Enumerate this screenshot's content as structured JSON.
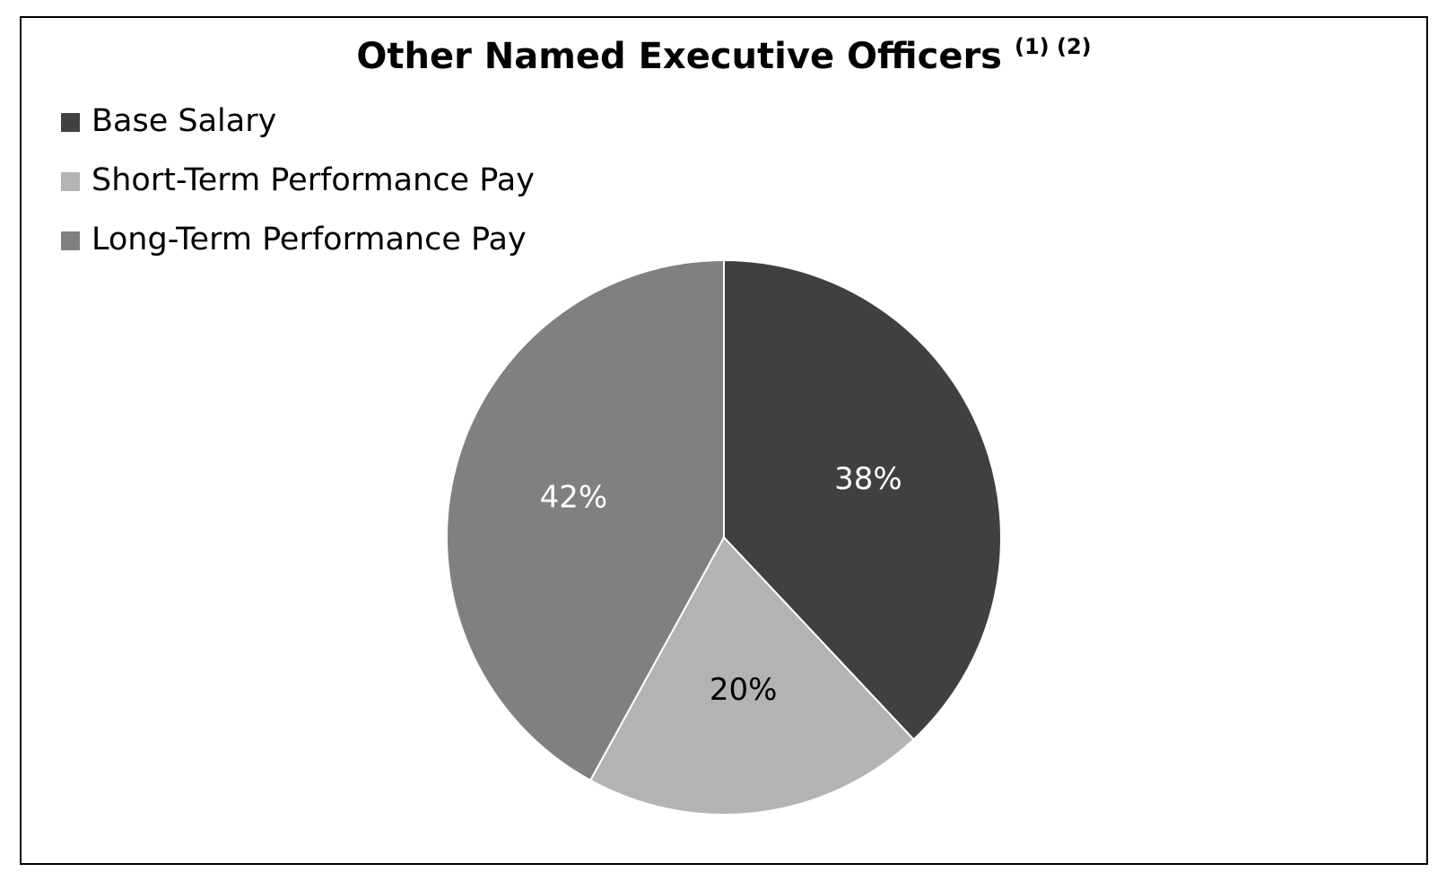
{
  "chart_data": {
    "type": "pie",
    "title": "Other Named Executive Officers",
    "title_superscript": "(1) (2)",
    "categories": [
      "Base Salary",
      "Short-Term Performance Pay",
      "Long-Term Performance Pay"
    ],
    "values": [
      38,
      20,
      42
    ],
    "value_labels": [
      "38%",
      "20%",
      "42%"
    ],
    "colors": [
      "#404040",
      "#b3b3b3",
      "#808080"
    ],
    "legend": "top-left"
  }
}
